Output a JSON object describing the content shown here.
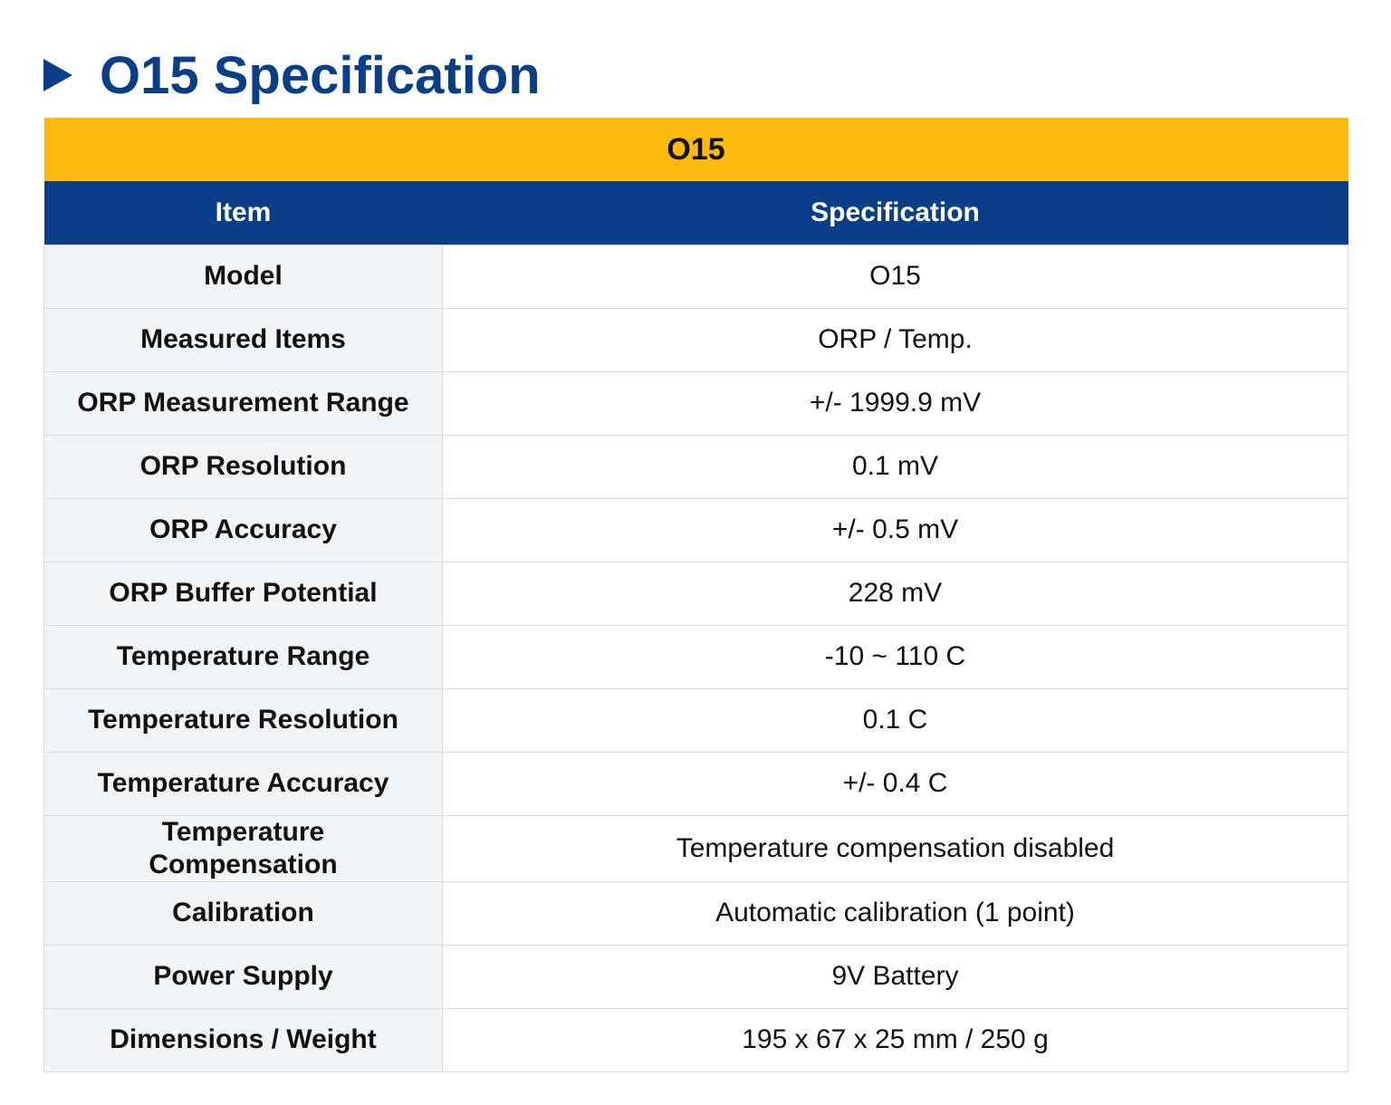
{
  "header": {
    "title": "O15 Specification"
  },
  "table": {
    "caption": "O15",
    "columns": [
      "Item",
      "Specification"
    ],
    "rows": [
      [
        "Model",
        "O15"
      ],
      [
        "Measured Items",
        "ORP / Temp."
      ],
      [
        "ORP Measurement Range",
        "+/- 1999.9 mV"
      ],
      [
        "ORP Resolution",
        "0.1 mV"
      ],
      [
        "ORP Accuracy",
        "+/- 0.5 mV"
      ],
      [
        "ORP Buffer Potential",
        "228 mV"
      ],
      [
        "Temperature Range",
        "-10 ~ 110 C"
      ],
      [
        "Temperature Resolution",
        "0.1 C"
      ],
      [
        "Temperature Accuracy",
        "+/- 0.4 C"
      ],
      [
        "Temperature Compensation",
        "Temperature compensation disabled"
      ],
      [
        "Calibration",
        "Automatic calibration (1 point)"
      ],
      [
        "Power Supply",
        "9V Battery"
      ],
      [
        "Dimensions / Weight",
        "195 x 67 x 25 mm / 250 g"
      ]
    ]
  }
}
